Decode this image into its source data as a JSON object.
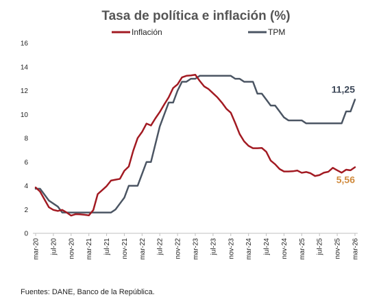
{
  "chart_data": {
    "type": "line",
    "title": "Tasa de política e inflación (%)",
    "source": "Fuentes: DANE, Banco de la República.",
    "xlabel": "",
    "ylabel": "",
    "ylim": [
      0,
      16
    ],
    "yticks": [
      "0",
      "2",
      "4",
      "6",
      "8",
      "10",
      "12",
      "14",
      "16"
    ],
    "grid": false,
    "legend_position": "top",
    "x_start": "mar-20",
    "x_end": "mar-26",
    "x_ticks": [
      "mar-20",
      "jul-20",
      "nov-20",
      "mar-21",
      "jul-21",
      "nov-21",
      "mar-22",
      "jul-22",
      "nov-22",
      "mar-23",
      "jul-23",
      "nov-23",
      "mar-24",
      "jul-24",
      "nov-24",
      "mar-25",
      "jul-25",
      "nov-25",
      "mar-26"
    ],
    "x": [
      "mar-20",
      "abr-20",
      "may-20",
      "jun-20",
      "jul-20",
      "ago-20",
      "sep-20",
      "oct-20",
      "nov-20",
      "dic-20",
      "ene-21",
      "feb-21",
      "mar-21",
      "abr-21",
      "may-21",
      "jun-21",
      "jul-21",
      "ago-21",
      "sep-21",
      "oct-21",
      "nov-21",
      "dic-21",
      "ene-22",
      "feb-22",
      "mar-22",
      "abr-22",
      "may-22",
      "jun-22",
      "jul-22",
      "ago-22",
      "sep-22",
      "oct-22",
      "nov-22",
      "dic-22",
      "ene-23",
      "feb-23",
      "mar-23",
      "abr-23",
      "may-23",
      "jun-23",
      "jul-23",
      "ago-23",
      "sep-23",
      "oct-23",
      "nov-23",
      "dic-23",
      "ene-24",
      "feb-24",
      "mar-24",
      "abr-24",
      "may-24",
      "jun-24",
      "jul-24",
      "ago-24",
      "sep-24",
      "oct-24",
      "nov-24",
      "dic-24",
      "ene-25",
      "feb-25",
      "mar-25",
      "abr-25",
      "may-25",
      "jun-25",
      "jul-25",
      "ago-25",
      "sep-25",
      "oct-25",
      "nov-25",
      "dic-25",
      "ene-26",
      "feb-26",
      "mar-26"
    ],
    "series": [
      {
        "name": "Inflación",
        "color": "#A21A22",
        "values": [
          3.86,
          3.51,
          2.85,
          2.19,
          1.97,
          1.88,
          1.97,
          1.75,
          1.49,
          1.61,
          1.6,
          1.56,
          1.51,
          1.95,
          3.3,
          3.63,
          3.97,
          4.44,
          4.51,
          4.58,
          5.26,
          5.62,
          6.94,
          8.01,
          8.53,
          9.23,
          9.07,
          9.67,
          10.21,
          10.84,
          11.44,
          12.22,
          12.53,
          13.12,
          13.25,
          13.28,
          13.34,
          12.82,
          12.36,
          12.13,
          11.78,
          11.43,
          10.99,
          10.48,
          10.15,
          9.28,
          8.35,
          7.74,
          7.36,
          7.16,
          7.16,
          7.18,
          6.86,
          6.12,
          5.81,
          5.41,
          5.2,
          5.2,
          5.22,
          5.28,
          5.09,
          5.16,
          5.05,
          4.82,
          4.9,
          5.1,
          5.18,
          5.51,
          5.3,
          5.1,
          5.35,
          5.3,
          5.56
        ]
      },
      {
        "name": "TPM",
        "color": "#4B5563",
        "values": [
          3.75,
          3.75,
          3.25,
          2.75,
          2.5,
          2.25,
          1.75,
          1.75,
          1.75,
          1.75,
          1.75,
          1.75,
          1.75,
          1.75,
          1.75,
          1.75,
          1.75,
          1.75,
          2.0,
          2.5,
          3.0,
          4.0,
          4.0,
          4.0,
          5.0,
          6.0,
          6.0,
          7.5,
          9.0,
          10.0,
          11.0,
          11.0,
          12.0,
          12.75,
          12.75,
          13.0,
          13.0,
          13.25,
          13.25,
          13.25,
          13.25,
          13.25,
          13.25,
          13.25,
          13.25,
          13.0,
          13.0,
          12.75,
          12.75,
          12.75,
          11.75,
          11.75,
          11.25,
          10.75,
          10.75,
          10.25,
          9.75,
          9.5,
          9.5,
          9.5,
          9.5,
          9.25,
          9.25,
          9.25,
          9.25,
          9.25,
          9.25,
          9.25,
          9.25,
          9.25,
          10.25,
          10.25,
          11.25
        ]
      }
    ],
    "end_labels": [
      {
        "series": "TPM",
        "text": "11,25",
        "color": "#3A4556"
      },
      {
        "series": "Inflación",
        "text": "5,56",
        "color": "#D08A3C"
      }
    ]
  }
}
